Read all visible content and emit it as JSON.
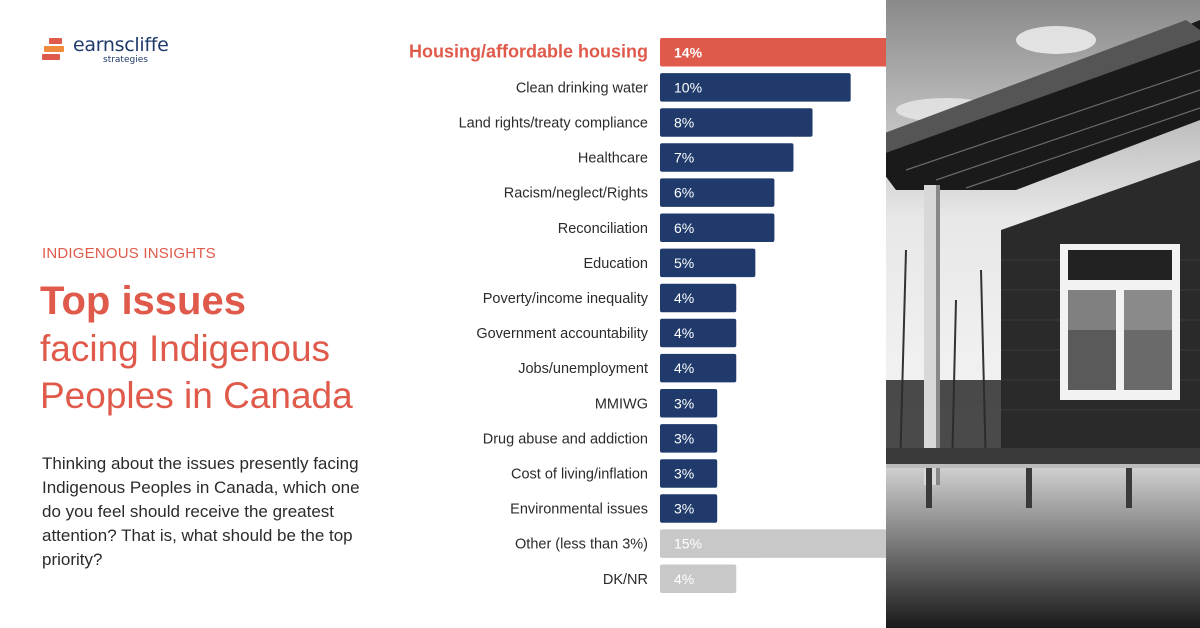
{
  "brand": {
    "name": "earnscliffe",
    "tagline": "strategies"
  },
  "eyebrow": "INDIGENOUS INSIGHTS",
  "title": {
    "bold": "Top issues",
    "line2": "facing Indigenous",
    "line3": "Peoples in Canada"
  },
  "question": "Thinking about the issues presently facing Indigenous Peoples in Canada, which one do you feel should receive the greatest attention? That is, what should be the top priority?",
  "colors": {
    "accent": "#e05a4b",
    "navy": "#1f3a6b",
    "gray": "#c8c8c8"
  },
  "chart_data": {
    "type": "bar",
    "orientation": "horizontal",
    "unit": "%",
    "categories": [
      "Housing/affordable housing",
      "Clean drinking water",
      "Land rights/treaty compliance",
      "Healthcare",
      "Racism/neglect/Rights",
      "Reconciliation",
      "Education",
      "Poverty/income inequality",
      "Government accountability",
      "Jobs/unemployment",
      "MMIWG",
      "Drug abuse and addiction",
      "Cost of living/inflation",
      "Environmental issues",
      "Other (less than 3%)",
      "DK/NR"
    ],
    "values": [
      14,
      10,
      8,
      7,
      6,
      6,
      5,
      4,
      4,
      4,
      3,
      3,
      3,
      3,
      15,
      4
    ],
    "value_labels": [
      "14%",
      "10%",
      "8%",
      "7%",
      "6%",
      "6%",
      "5%",
      "4%",
      "4%",
      "4%",
      "3%",
      "3%",
      "3%",
      "3%",
      "15%",
      "4%"
    ],
    "bar_styles": [
      "highlight",
      "navy",
      "navy",
      "navy",
      "navy",
      "navy",
      "navy",
      "navy",
      "navy",
      "navy",
      "navy",
      "navy",
      "navy",
      "navy",
      "muted",
      "muted"
    ],
    "xlim": [
      0,
      15
    ],
    "grid": false,
    "legend": "none"
  }
}
